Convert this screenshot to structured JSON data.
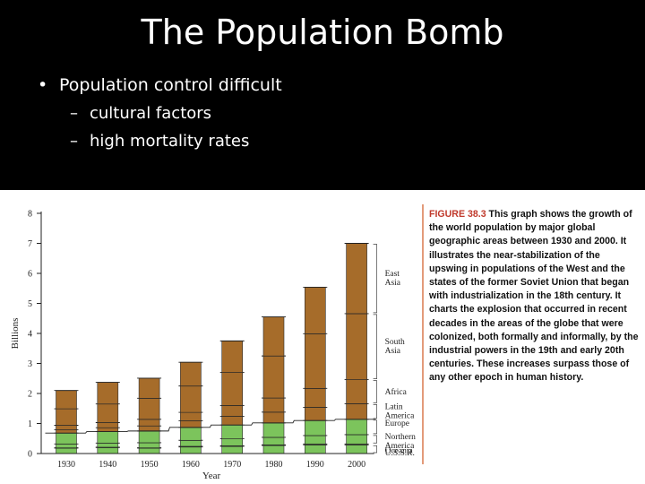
{
  "slide": {
    "title": "The Population Bomb",
    "bullets": [
      {
        "text": "Population control difficult",
        "level": 1
      },
      {
        "text": "cultural factors",
        "level": 2
      },
      {
        "text": "high mortality rates",
        "level": 2
      }
    ]
  },
  "caption": {
    "label": "FIGURE 38.3",
    "text": "This graph shows the growth of the world population by major global geographic areas between 1930 and 2000. It illustrates the near-stabilization of the upswing in populations of the West and the states of the former Soviet Union that began with industrialization in the 18th century. It charts the explosion that occurred in recent decades in the areas of the globe that were colonized, both formally and informally, by the industrial powers in the 19th and early 20th centuries. These increases surpass those of any other epoch in human history."
  },
  "chart_data": {
    "type": "bar",
    "stacked": true,
    "xlabel": "Year",
    "ylabel": "Billions",
    "ylim": [
      0,
      8
    ],
    "yticks": [
      0,
      1,
      2,
      3,
      4,
      5,
      6,
      7,
      8
    ],
    "categories": [
      "1930",
      "1940",
      "1950",
      "1960",
      "1970",
      "1980",
      "1990",
      "2000"
    ],
    "colors": {
      "developed": "#7cc45c",
      "developing": "#a66c2a"
    },
    "series": [
      {
        "name": "U.S.S.R.",
        "values": [
          0.18,
          0.2,
          0.18,
          0.22,
          0.24,
          0.27,
          0.29,
          0.29
        ]
      },
      {
        "name": "Oceania",
        "values": [
          0.01,
          0.01,
          0.01,
          0.02,
          0.02,
          0.02,
          0.03,
          0.03
        ]
      },
      {
        "name": "Northern America",
        "values": [
          0.13,
          0.14,
          0.17,
          0.2,
          0.23,
          0.25,
          0.28,
          0.31
        ]
      },
      {
        "name": "Europe",
        "values": [
          0.36,
          0.38,
          0.39,
          0.43,
          0.46,
          0.48,
          0.5,
          0.51
        ]
      },
      {
        "name": "Latin America",
        "values": [
          0.11,
          0.13,
          0.17,
          0.22,
          0.29,
          0.36,
          0.44,
          0.52
        ]
      },
      {
        "name": "Africa",
        "values": [
          0.15,
          0.17,
          0.22,
          0.28,
          0.36,
          0.47,
          0.63,
          0.8
        ]
      },
      {
        "name": "South Asia",
        "values": [
          0.55,
          0.62,
          0.7,
          0.88,
          1.1,
          1.4,
          1.82,
          2.2
        ]
      },
      {
        "name": "East Asia",
        "values": [
          0.61,
          0.72,
          0.67,
          0.79,
          1.05,
          1.3,
          1.55,
          2.34
        ]
      }
    ],
    "developed_series": [
      "U.S.S.R.",
      "Oceania",
      "Northern America",
      "Europe"
    ],
    "legend_labels": [
      {
        "text": "East Asia",
        "lines": [
          "East",
          "Asia"
        ]
      },
      {
        "text": "South Asia",
        "lines": [
          "South",
          "Asia"
        ]
      },
      {
        "text": "Africa",
        "lines": [
          "Africa"
        ]
      },
      {
        "text": "Latin America",
        "lines": [
          "Latin",
          "America"
        ]
      },
      {
        "text": "Europe",
        "lines": [
          "Europe"
        ]
      },
      {
        "text": "Northern America",
        "lines": [
          "Northern",
          "America"
        ]
      },
      {
        "text": "Oceania",
        "lines": [
          "Oceania"
        ]
      },
      {
        "text": "U.S.S.R.",
        "lines": [
          "U.S.S.R."
        ]
      }
    ]
  }
}
